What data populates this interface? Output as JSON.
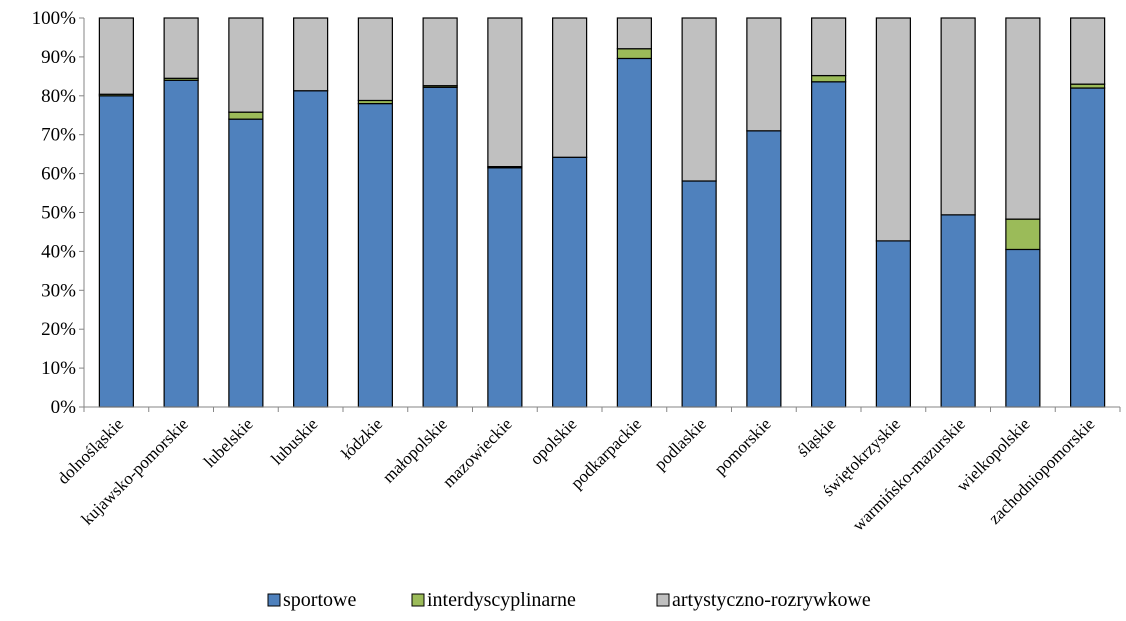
{
  "chart_data": {
    "type": "bar",
    "stacked": true,
    "percent_stacked": true,
    "categories": [
      "dolnośląskie",
      "kujawsko-pomorskie",
      "lubelskie",
      "lubuskie",
      "łódzkie",
      "małopolskie",
      "mazowieckie",
      "opolskie",
      "podkarpackie",
      "podlaskie",
      "pomorskie",
      "śląskie",
      "świętokrzyskie",
      "warmińsko-mazurskie",
      "wielkopolskie",
      "zachodniopomorskie"
    ],
    "series": [
      {
        "name": "sportowe",
        "color": "#4f81bd",
        "values": [
          80.0,
          84.0,
          74.0,
          81.3,
          78.0,
          82.2,
          61.5,
          64.2,
          89.6,
          58.1,
          71.0,
          83.6,
          42.7,
          49.4,
          40.5,
          82.0
        ]
      },
      {
        "name": "interdyscyplinarne",
        "color": "#9bbb59",
        "values": [
          0.4,
          0.5,
          1.8,
          0.0,
          0.8,
          0.4,
          0.3,
          0.0,
          2.5,
          0.0,
          0.0,
          1.6,
          0.0,
          0.0,
          7.8,
          1.0
        ]
      },
      {
        "name": "artystyczno-rozrywkowe",
        "color": "#c0c0c0",
        "values": [
          19.6,
          15.5,
          24.2,
          18.7,
          21.2,
          17.4,
          38.2,
          35.8,
          7.9,
          41.9,
          29.0,
          14.8,
          57.3,
          50.6,
          51.7,
          17.0
        ]
      }
    ],
    "yticks": [
      "0%",
      "10%",
      "20%",
      "30%",
      "40%",
      "50%",
      "60%",
      "70%",
      "80%",
      "90%",
      "100%"
    ],
    "ylim": [
      0,
      100
    ],
    "grid": false,
    "legend_position": "bottom",
    "title": "",
    "xlabel": "",
    "ylabel": ""
  }
}
